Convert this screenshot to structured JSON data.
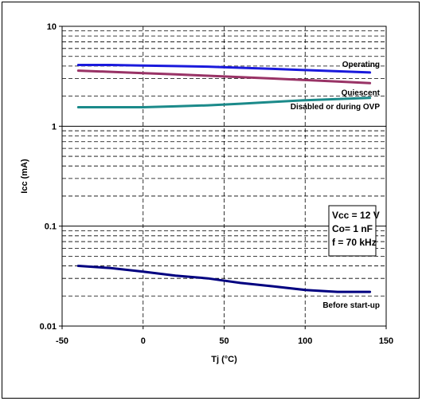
{
  "chart_data": {
    "type": "line",
    "title": "",
    "xlabel": "Tj (°C)",
    "ylabel": "Icc (mA)",
    "xlim": [
      -50,
      150
    ],
    "ylim": [
      0.01,
      10
    ],
    "y_scale": "log",
    "grid": true,
    "x_ticks": [
      -50,
      0,
      50,
      100,
      150
    ],
    "x_tick_labels": [
      "-50",
      "0",
      "50",
      "100",
      "150"
    ],
    "y_ticks": [
      0.01,
      0.1,
      1,
      10
    ],
    "y_tick_labels": [
      "0.01",
      "0.1",
      "1",
      "10"
    ],
    "x": [
      -40,
      -20,
      0,
      20,
      40,
      60,
      80,
      100,
      120,
      140
    ],
    "series": [
      {
        "name": "Operating",
        "color": "#1a1adc",
        "values": [
          4.1,
          4.1,
          4.05,
          4.0,
          3.95,
          3.85,
          3.75,
          3.65,
          3.55,
          3.45
        ]
      },
      {
        "name": "Quiescent",
        "color": "#993366",
        "values": [
          3.6,
          3.5,
          3.4,
          3.3,
          3.2,
          3.1,
          3.0,
          2.9,
          2.8,
          2.7
        ]
      },
      {
        "name": "Disabled or during OVP",
        "color": "#1b8a8a",
        "values": [
          1.55,
          1.55,
          1.55,
          1.58,
          1.62,
          1.68,
          1.75,
          1.82,
          1.87,
          1.92
        ]
      },
      {
        "name": "Before start-up",
        "color": "#000080",
        "values": [
          0.04,
          0.038,
          0.035,
          0.032,
          0.03,
          0.027,
          0.025,
          0.023,
          0.022,
          0.022
        ]
      }
    ],
    "annotation": {
      "lines": [
        "Vcc = 12 V",
        "Co= 1 nF",
        "f = 70 kHz"
      ]
    }
  }
}
